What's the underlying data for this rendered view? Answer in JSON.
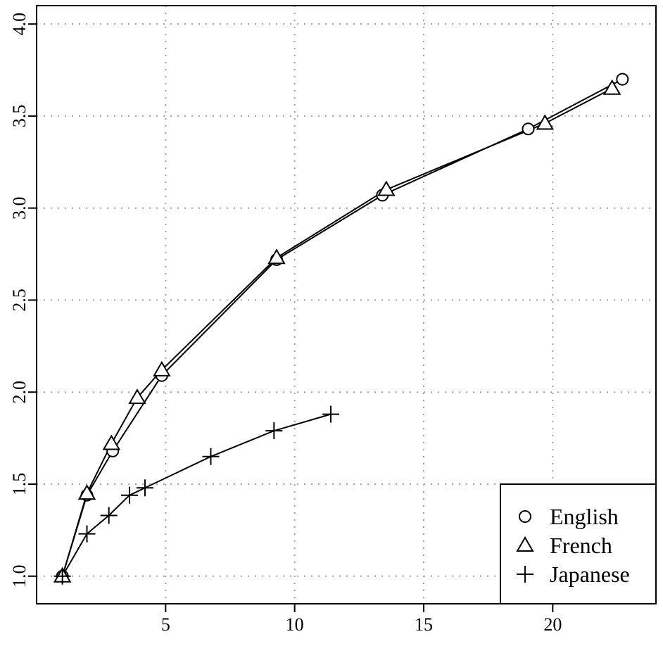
{
  "chart_data": {
    "type": "line",
    "title": "",
    "xlabel": "",
    "ylabel": "",
    "xlim": [
      0.0,
      24.0
    ],
    "ylim": [
      0.85,
      4.1
    ],
    "xticks": [
      5,
      10,
      15,
      20
    ],
    "yticks": [
      1.0,
      1.5,
      2.0,
      2.5,
      3.0,
      3.5,
      4.0
    ],
    "grid": true,
    "legend_position": "bottom-right",
    "series": [
      {
        "name": "English",
        "marker": "circle",
        "x": [
          1.0,
          1.95,
          2.95,
          4.85,
          9.3,
          13.4,
          19.05,
          22.7
        ],
        "y": [
          1.0,
          1.44,
          1.68,
          2.09,
          2.72,
          3.07,
          3.43,
          3.7
        ]
      },
      {
        "name": "French",
        "marker": "triangle",
        "x": [
          1.0,
          1.95,
          2.9,
          3.9,
          4.85,
          9.3,
          13.55,
          19.7,
          22.3
        ],
        "y": [
          1.0,
          1.45,
          1.72,
          1.97,
          2.12,
          2.73,
          3.1,
          3.46,
          3.65
        ]
      },
      {
        "name": "Japanese",
        "marker": "plus",
        "x": [
          1.0,
          1.95,
          2.8,
          3.6,
          4.2,
          6.75,
          9.2,
          11.4
        ],
        "y": [
          1.0,
          1.23,
          1.33,
          1.44,
          1.48,
          1.65,
          1.79,
          1.88
        ]
      }
    ]
  }
}
